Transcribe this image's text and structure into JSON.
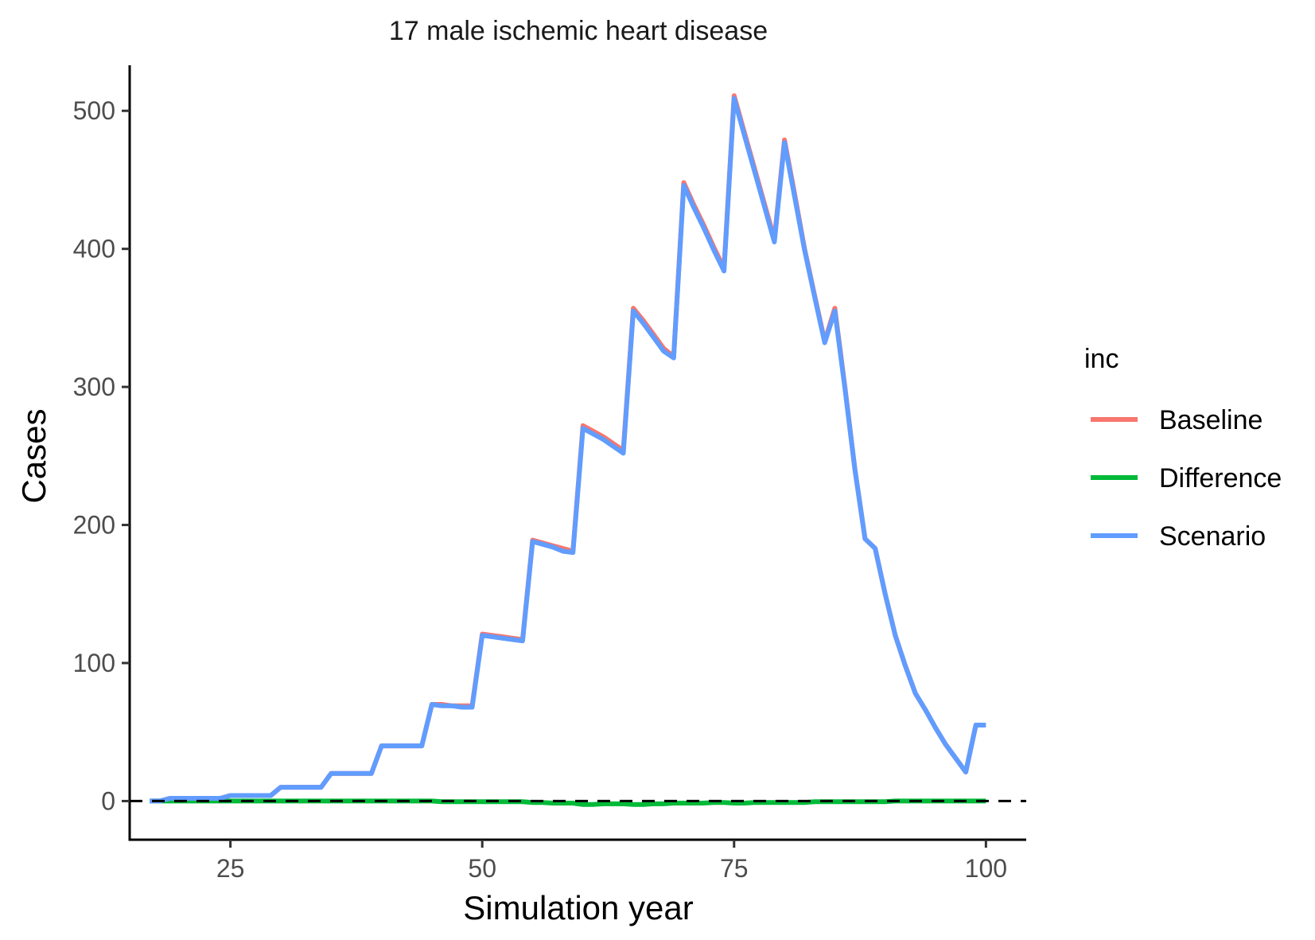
{
  "chart_data": {
    "type": "line",
    "title": "17 male ischemic heart disease",
    "xlabel": "Simulation year",
    "ylabel": "Cases",
    "xlim": [
      15,
      104
    ],
    "ylim": [
      -28,
      533
    ],
    "x_ticks": [
      25,
      50,
      75,
      100
    ],
    "y_ticks": [
      0,
      100,
      200,
      300,
      400,
      500
    ],
    "grid": false,
    "reference_line": {
      "y": 0,
      "style": "dashed"
    },
    "legend": {
      "title": "inc",
      "position": "right"
    },
    "series": [
      {
        "name": "Baseline",
        "color": "#F8766D",
        "x": [
          17,
          18,
          19,
          20,
          21,
          22,
          23,
          24,
          25,
          26,
          27,
          28,
          29,
          30,
          31,
          32,
          33,
          34,
          35,
          36,
          37,
          38,
          39,
          40,
          41,
          42,
          43,
          44,
          45,
          46,
          47,
          48,
          49,
          50,
          51,
          52,
          53,
          54,
          55,
          56,
          57,
          58,
          59,
          60,
          61,
          62,
          63,
          64,
          65,
          66,
          67,
          68,
          69,
          70,
          71,
          72,
          73,
          74,
          75,
          76,
          77,
          78,
          79,
          80,
          81,
          82,
          83,
          84,
          85,
          86,
          87,
          88,
          89,
          90,
          91,
          92,
          93,
          94,
          95,
          96,
          97,
          98,
          99,
          100
        ],
        "values": [
          0,
          0,
          2,
          2,
          2,
          2,
          2,
          2,
          4,
          4,
          4,
          4,
          4,
          10,
          10,
          10,
          10,
          10,
          20,
          20,
          20,
          20,
          20,
          40,
          40,
          40,
          40,
          40,
          70,
          70,
          69,
          69,
          69,
          121,
          120,
          119,
          118,
          117,
          189,
          187,
          185,
          183,
          181,
          272,
          268,
          264,
          259,
          254,
          357,
          348,
          338,
          328,
          322,
          448,
          432,
          417,
          401,
          386,
          511,
          485,
          459,
          433,
          407,
          479,
          440,
          400,
          366,
          333,
          357,
          300,
          240,
          190,
          183,
          150,
          120,
          98,
          78,
          66,
          53,
          41,
          31,
          21,
          55,
          55
        ]
      },
      {
        "name": "Difference",
        "color": "#00BA38",
        "x": [
          17,
          18,
          19,
          20,
          21,
          22,
          23,
          24,
          25,
          26,
          27,
          28,
          29,
          30,
          31,
          32,
          33,
          34,
          35,
          36,
          37,
          38,
          39,
          40,
          41,
          42,
          43,
          44,
          45,
          46,
          47,
          48,
          49,
          50,
          51,
          52,
          53,
          54,
          55,
          56,
          57,
          58,
          59,
          60,
          61,
          62,
          63,
          64,
          65,
          66,
          67,
          68,
          69,
          70,
          71,
          72,
          73,
          74,
          75,
          76,
          77,
          78,
          79,
          80,
          81,
          82,
          83,
          84,
          85,
          86,
          87,
          88,
          89,
          90,
          91,
          92,
          93,
          94,
          95,
          96,
          97,
          98,
          99,
          100
        ],
        "values": [
          0,
          0,
          0,
          0,
          0,
          0,
          0,
          0,
          0,
          0,
          0,
          0,
          0,
          0,
          0,
          0,
          0,
          0,
          0,
          0,
          0,
          0,
          0,
          0,
          0,
          0,
          0,
          0,
          0,
          -0.5,
          -0.5,
          -0.5,
          -0.5,
          -0.5,
          -0.5,
          -0.5,
          -0.5,
          -0.5,
          -1,
          -1,
          -1.5,
          -1.5,
          -1.5,
          -2.5,
          -2.5,
          -2,
          -2,
          -2,
          -2.5,
          -2.5,
          -2,
          -2,
          -1.5,
          -1.5,
          -1.5,
          -1.5,
          -1,
          -1,
          -1.5,
          -1.5,
          -1,
          -1,
          -1,
          -1,
          -1,
          -1,
          -0.5,
          -0.5,
          -0.5,
          -0.5,
          -0.5,
          -0.5,
          -0.5,
          -0.5,
          0,
          0,
          0,
          0,
          0,
          0,
          0,
          0,
          0,
          0
        ]
      },
      {
        "name": "Scenario",
        "color": "#619CFF",
        "x": [
          17,
          18,
          19,
          20,
          21,
          22,
          23,
          24,
          25,
          26,
          27,
          28,
          29,
          30,
          31,
          32,
          33,
          34,
          35,
          36,
          37,
          38,
          39,
          40,
          41,
          42,
          43,
          44,
          45,
          46,
          47,
          48,
          49,
          50,
          51,
          52,
          53,
          54,
          55,
          56,
          57,
          58,
          59,
          60,
          61,
          62,
          63,
          64,
          65,
          66,
          67,
          68,
          69,
          70,
          71,
          72,
          73,
          74,
          75,
          76,
          77,
          78,
          79,
          80,
          81,
          82,
          83,
          84,
          85,
          86,
          87,
          88,
          89,
          90,
          91,
          92,
          93,
          94,
          95,
          96,
          97,
          98,
          99,
          100
        ],
        "values": [
          0,
          0,
          2,
          2,
          2,
          2,
          2,
          2,
          4,
          4,
          4,
          4,
          4,
          10,
          10,
          10,
          10,
          10,
          20,
          20,
          20,
          20,
          20,
          40,
          40,
          40,
          40,
          40,
          70,
          69,
          69,
          68,
          68,
          120,
          119,
          118,
          117,
          116,
          188,
          186,
          184,
          181,
          180,
          270,
          266,
          262,
          257,
          252,
          355,
          346,
          336,
          326,
          321,
          446,
          430,
          415,
          399,
          384,
          509,
          483,
          457,
          431,
          405,
          477,
          438,
          399,
          365,
          332,
          355,
          299,
          240,
          190,
          183,
          150,
          120,
          98,
          78,
          66,
          53,
          41,
          31,
          21,
          55,
          55
        ]
      }
    ]
  }
}
